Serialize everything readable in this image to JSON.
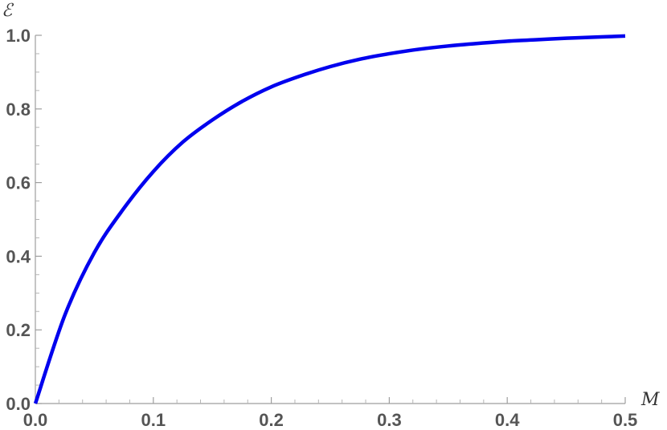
{
  "chart_data": {
    "type": "line",
    "title": "",
    "xlabel": "M",
    "ylabel": "ℰ",
    "xlim": [
      0,
      0.5
    ],
    "ylim": [
      0,
      1.0
    ],
    "x_ticks": [
      "0.0",
      "0.1",
      "0.2",
      "0.3",
      "0.4",
      "0.5"
    ],
    "y_ticks": [
      "0.0",
      "0.2",
      "0.4",
      "0.6",
      "0.8",
      "1.0"
    ],
    "grid": false,
    "series": [
      {
        "color": "#0000ee",
        "x": [
          0,
          0.025,
          0.05,
          0.075,
          0.1,
          0.125,
          0.15,
          0.175,
          0.2,
          0.225,
          0.25,
          0.275,
          0.3,
          0.325,
          0.35,
          0.375,
          0.4,
          0.425,
          0.45,
          0.475,
          0.5
        ],
        "y": [
          0,
          0.24,
          0.41,
          0.53,
          0.63,
          0.71,
          0.77,
          0.82,
          0.86,
          0.89,
          0.915,
          0.935,
          0.95,
          0.962,
          0.971,
          0.978,
          0.984,
          0.988,
          0.992,
          0.995,
          0.998
        ]
      }
    ]
  }
}
